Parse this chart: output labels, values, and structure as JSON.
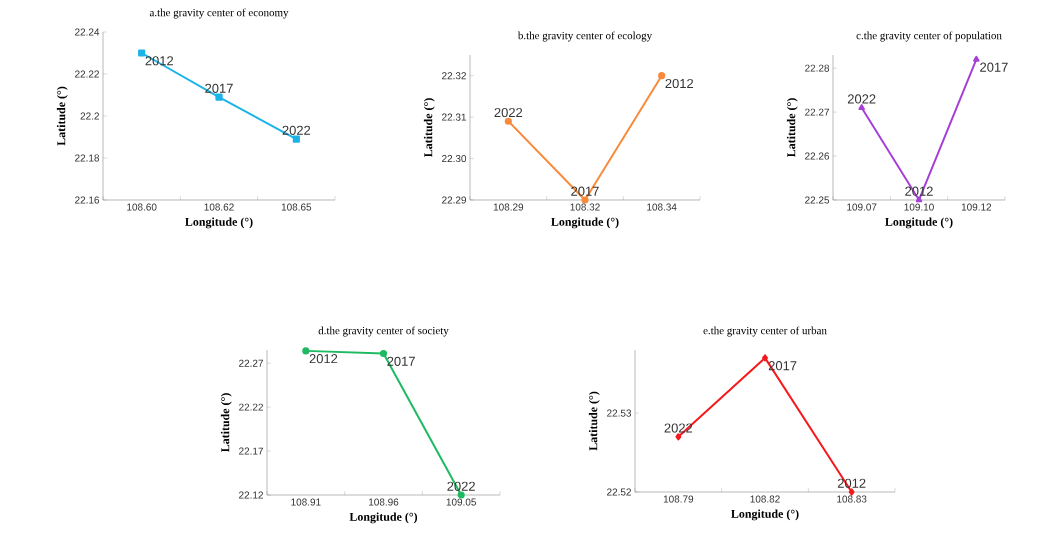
{
  "chart_data": [
    {
      "type": "line",
      "title": "a.the gravity center of economy",
      "xlabel": "Longitude (°)",
      "ylabel": "Latitude (°)",
      "categories": [
        "108.60",
        "108.62",
        "108.65"
      ],
      "series": [
        {
          "color": "#1cb4e8",
          "values": [
            22.23,
            22.209,
            22.189
          ]
        }
      ],
      "marker": "square",
      "ylim": [
        22.16,
        22.24
      ],
      "yticks": [
        22.16,
        22.18,
        22.2,
        22.22,
        22.24
      ],
      "annotations": [
        {
          "text": "2012",
          "x": "108.60",
          "y": 22.23
        },
        {
          "text": "2017",
          "x": "108.62",
          "y": 22.209
        },
        {
          "text": "2022",
          "x": "108.65",
          "y": 22.189
        }
      ]
    },
    {
      "type": "line",
      "title": "b.the gravity center of ecology",
      "xlabel": "Longitude (°)",
      "ylabel": "Latitude (°)",
      "categories": [
        "108.29",
        "108.32",
        "108.34"
      ],
      "series": [
        {
          "color": "#f98a3c",
          "values": [
            22.309,
            22.29,
            22.32
          ]
        }
      ],
      "marker": "circle",
      "ylim": [
        22.29,
        22.325
      ],
      "yticks": [
        22.29,
        {
          "value": 22.3,
          "label": "22.30"
        },
        22.31,
        22.32
      ],
      "annotations": [
        {
          "text": "2022",
          "x": "108.29",
          "y": 22.309
        },
        {
          "text": "2017",
          "x": "108.32",
          "y": 22.29
        },
        {
          "text": "2012",
          "x": "108.34",
          "y": 22.32
        }
      ]
    },
    {
      "type": "line",
      "title": "c.the gravity center of population",
      "xlabel": "Longitude (°)",
      "ylabel": "Latitude (°)",
      "categories": [
        "109.07",
        "109.10",
        "109.12"
      ],
      "series": [
        {
          "color": "#a63fd8",
          "values": [
            22.271,
            22.25,
            22.282
          ]
        }
      ],
      "marker": "triangle",
      "ylim": [
        22.25,
        22.283
      ],
      "yticks": [
        22.25,
        22.26,
        22.27,
        22.28
      ],
      "annotations": [
        {
          "text": "2022",
          "x": "109.07",
          "y": 22.271
        },
        {
          "text": "2012",
          "x": "109.10",
          "y": 22.25
        },
        {
          "text": "2017",
          "x": "109.12",
          "y": 22.282
        }
      ]
    },
    {
      "type": "line",
      "title": "d.the gravity center of society",
      "xlabel": "Longitude (°)",
      "ylabel": "Latitude (°)",
      "categories": [
        "108.91",
        "108.96",
        "109.05"
      ],
      "series": [
        {
          "color": "#1dba62",
          "values": [
            22.284,
            22.281,
            22.12
          ]
        }
      ],
      "marker": "circle",
      "ylim": [
        22.12,
        22.285
      ],
      "yticks": [
        22.12,
        22.17,
        22.22,
        22.27
      ],
      "annotations": [
        {
          "text": "2012",
          "x": "108.91",
          "y": 22.284
        },
        {
          "text": "2017",
          "x": "108.96",
          "y": 22.281
        },
        {
          "text": "2022",
          "x": "109.05",
          "y": 22.12
        }
      ]
    },
    {
      "type": "line",
      "title": "e.the gravity center of urban",
      "xlabel": "Longitude (°)",
      "ylabel": "Latitude (°)",
      "categories": [
        "108.79",
        "108.82",
        "108.83"
      ],
      "series": [
        {
          "color": "#f5191c",
          "values": [
            22.527,
            22.537,
            22.52
          ]
        }
      ],
      "marker": "diamond",
      "ylim": [
        22.52,
        22.538
      ],
      "yticks": [
        22.52,
        22.53
      ],
      "annotations": [
        {
          "text": "2022",
          "x": "108.79",
          "y": 22.527
        },
        {
          "text": "2017",
          "x": "108.82",
          "y": 22.537
        },
        {
          "text": "2012",
          "x": "108.83",
          "y": 22.52
        }
      ]
    }
  ]
}
